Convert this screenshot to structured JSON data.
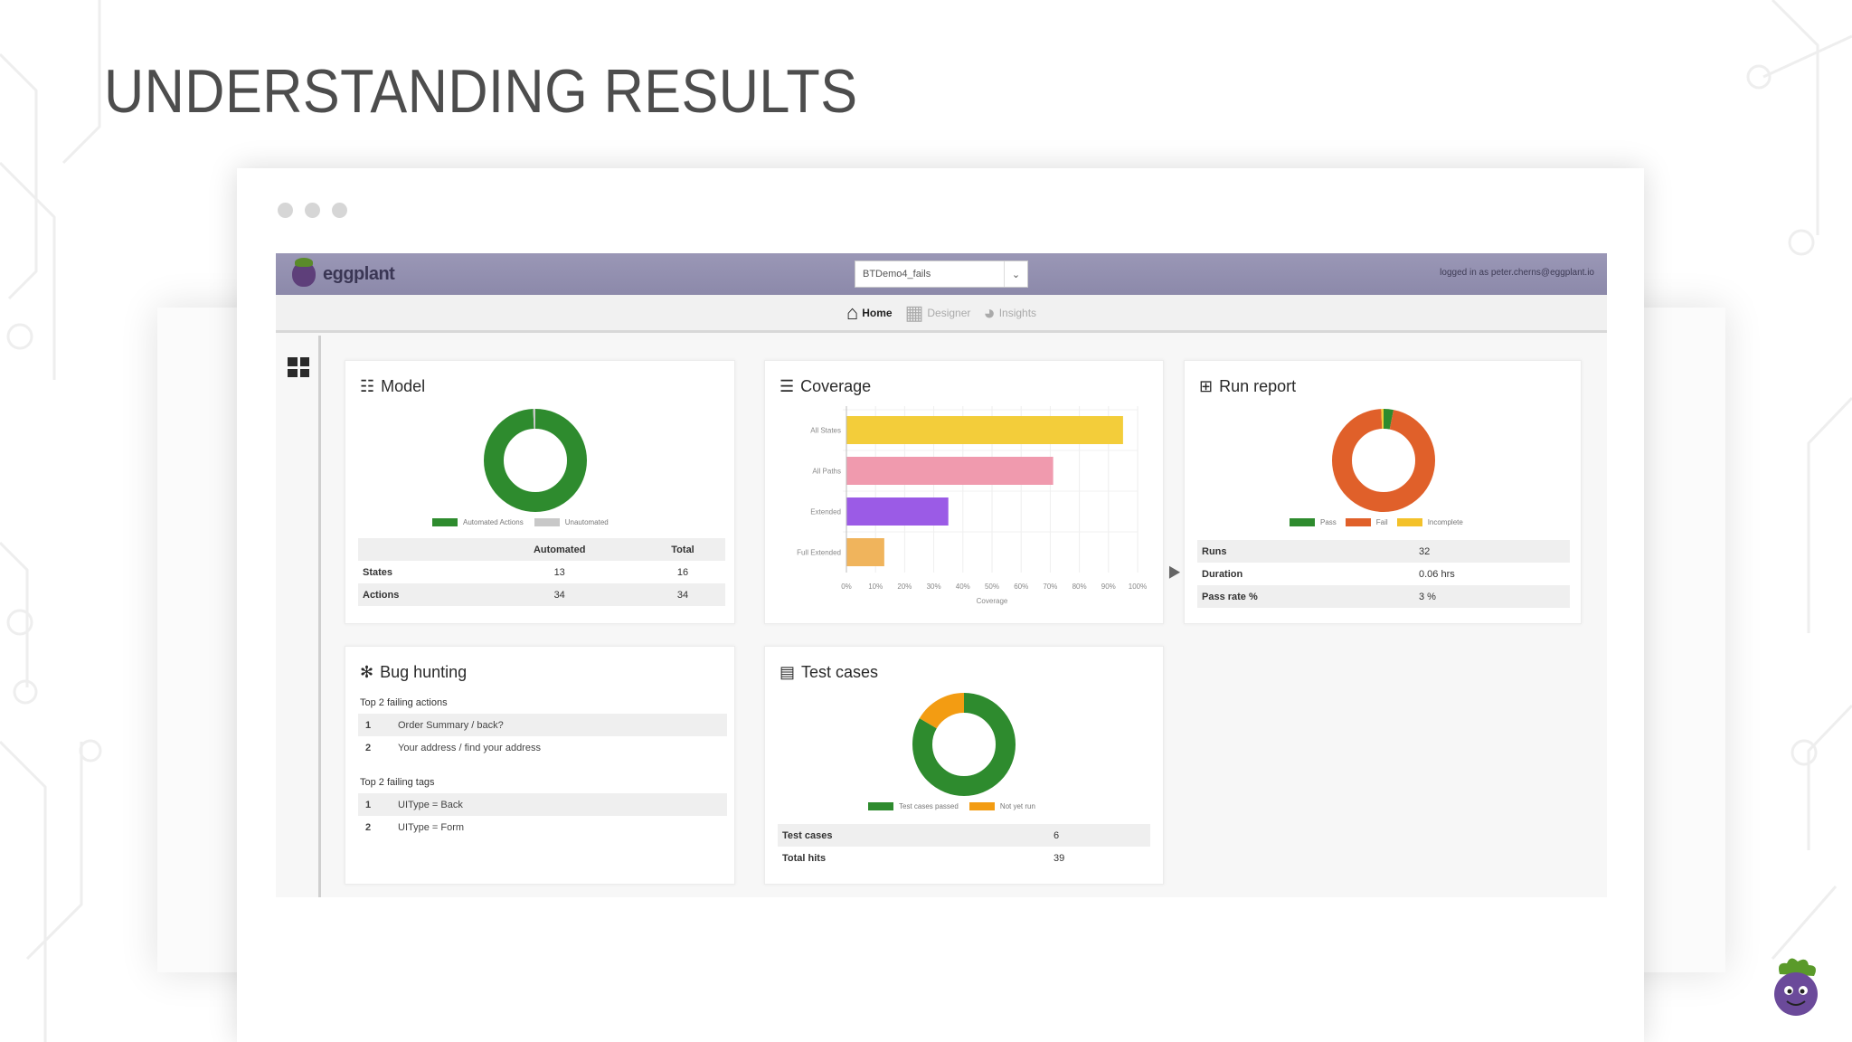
{
  "slide": {
    "title": "UNDERSTANDING RESULTS"
  },
  "app": {
    "logo_text": "eggplant",
    "project_select": {
      "value": "BTDemo4_fails"
    },
    "login_text": "logged in as peter.cherns@eggplant.io",
    "nav": [
      {
        "label": "Home",
        "icon": "home-icon",
        "active": true
      },
      {
        "label": "Designer",
        "icon": "sitemap-icon",
        "active": false
      },
      {
        "label": "Insights",
        "icon": "pie-chart-icon",
        "active": false
      }
    ],
    "sidebar_icon": "grid-icon"
  },
  "model": {
    "title": "Model",
    "icon": "sitemap-icon",
    "legend": [
      "Automated Actions",
      "Unautomated"
    ],
    "table_headers": [
      "",
      "Automated",
      "Total"
    ],
    "rows": [
      {
        "label": "States",
        "automated": "13",
        "total": "16"
      },
      {
        "label": "Actions",
        "automated": "34",
        "total": "34"
      }
    ]
  },
  "coverage": {
    "title": "Coverage",
    "icon": "layers-icon"
  },
  "run_report": {
    "title": "Run report",
    "icon": "table-icon",
    "legend": [
      "Pass",
      "Fail",
      "Incomplete"
    ],
    "rows": [
      {
        "label": "Runs",
        "value": "32"
      },
      {
        "label": "Duration",
        "value": "0.06 hrs"
      },
      {
        "label": "Pass rate %",
        "value": "3 %"
      }
    ]
  },
  "bug_hunting": {
    "title": "Bug hunting",
    "icon": "bug-icon",
    "actions_heading": "Top 2 failing actions",
    "actions": [
      {
        "rank": "1",
        "text": "Order Summary / back?"
      },
      {
        "rank": "2",
        "text": "Your address / find your address"
      }
    ],
    "tags_heading": "Top 2 failing tags",
    "tags": [
      {
        "rank": "1",
        "text": "UIType = Back"
      },
      {
        "rank": "2",
        "text": "UIType = Form"
      }
    ]
  },
  "test_cases": {
    "title": "Test cases",
    "icon": "list-icon",
    "legend": [
      "Test cases passed",
      "Not yet run"
    ],
    "rows": [
      {
        "label": "Test cases",
        "value": "6"
      },
      {
        "label": "Total hits",
        "value": "39"
      }
    ]
  },
  "colors": {
    "green": "#2e8b2e",
    "orange_red": "#e0602a",
    "yellow": "#f3cd3a",
    "orange": "#f39c12",
    "grey": "#c8c8c8",
    "pink": "#f09aae",
    "purple": "#9b5be6",
    "peach": "#f0b45c"
  },
  "chart_data": [
    {
      "type": "pie",
      "donut": true,
      "chart": "model",
      "series": [
        {
          "name": "Automated Actions",
          "value": 34
        },
        {
          "name": "Unautomated",
          "value": 0.3
        }
      ]
    },
    {
      "type": "bar",
      "orientation": "horizontal",
      "chart": "coverage",
      "categories": [
        "All States",
        "All Paths",
        "Extended",
        "Full Extended"
      ],
      "values": [
        95,
        71,
        35,
        13
      ],
      "xlabel": "Coverage",
      "xlim": [
        0,
        100
      ],
      "xticks": [
        "0%",
        "10%",
        "20%",
        "30%",
        "40%",
        "50%",
        "60%",
        "70%",
        "80%",
        "90%",
        "100%"
      ],
      "grid": true
    },
    {
      "type": "pie",
      "donut": true,
      "chart": "run_report",
      "series": [
        {
          "name": "Pass",
          "value": 1
        },
        {
          "name": "Fail",
          "value": 31
        },
        {
          "name": "Incomplete",
          "value": 0.3
        }
      ]
    },
    {
      "type": "pie",
      "donut": true,
      "chart": "test_cases",
      "series": [
        {
          "name": "Test cases passed",
          "value": 5
        },
        {
          "name": "Not yet run",
          "value": 1
        }
      ]
    }
  ]
}
